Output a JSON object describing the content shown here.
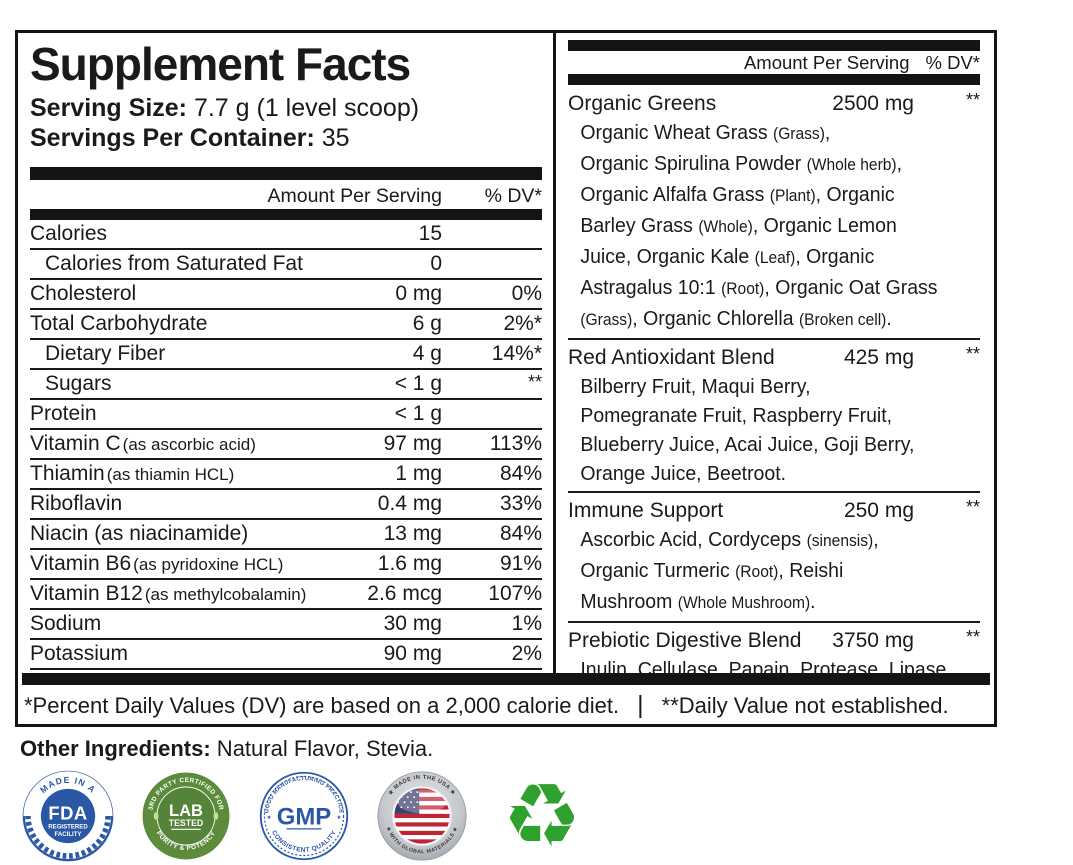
{
  "panel": {
    "title": "Supplement Facts",
    "serving_size_label": "Serving Size:",
    "serving_size_value": " 7.7 g (1 level scoop)",
    "servings_label": "Servings Per Container:",
    "servings_value": " 35",
    "left_header": {
      "amount": "Amount Per Serving",
      "dv": "% DV*"
    },
    "nutrients": [
      {
        "name": "Calories",
        "amount": "15",
        "dv": ""
      },
      {
        "name": "Calories from Saturated Fat",
        "amount": "0",
        "dv": "",
        "indent": true
      },
      {
        "name": "Cholesterol",
        "amount": "0 mg",
        "dv": "0%"
      },
      {
        "name": "Total Carbohydrate",
        "amount": "6 g",
        "dv": "2%*"
      },
      {
        "name": "Dietary Fiber",
        "amount": "4 g",
        "dv": "14%*",
        "indent": true
      },
      {
        "name": "Sugars",
        "amount": "< 1 g",
        "dv": "**",
        "indent": true,
        "stars": true
      },
      {
        "name": "Protein",
        "amount": "< 1 g",
        "dv": ""
      },
      {
        "name": "Vitamin C",
        "note": "(as ascorbic acid)",
        "amount": "97 mg",
        "dv": "113%"
      },
      {
        "name": "Thiamin",
        "note": "(as thiamin HCL)",
        "amount": "1 mg",
        "dv": "84%"
      },
      {
        "name": "Riboflavin",
        "amount": "0.4 mg",
        "dv": "33%"
      },
      {
        "name": "Niacin (as niacinamide)",
        "amount": "13 mg",
        "dv": "84%"
      },
      {
        "name": "Vitamin B6",
        "note": "(as pyridoxine HCL)",
        "amount": "1.6 mg",
        "dv": "91%"
      },
      {
        "name": "Vitamin B12",
        "note": "(as methylcobalamin)",
        "amount": "2.6 mcg",
        "dv": "107%"
      },
      {
        "name": "Sodium",
        "amount": "30 mg",
        "dv": "1%"
      },
      {
        "name": "Potassium",
        "amount": "90 mg",
        "dv": "2%"
      }
    ],
    "right_header": {
      "amount": "Amount Per Serving",
      "dv": "% DV*"
    },
    "blends": [
      {
        "name": "Organic Greens",
        "amount": "2500 mg",
        "dv": "**",
        "lines": [
          "Organic Wheat Grass (Grass),",
          "Organic Spirulina Powder (Whole herb),",
          "Organic Alfalfa Grass (Plant), Organic",
          "Barley Grass (Whole), Organic Lemon",
          "Juice, Organic Kale (Leaf), Organic",
          "Astragalus 10:1 (Root), Organic Oat Grass",
          "(Grass), Organic Chlorella (Broken cell)."
        ]
      },
      {
        "name": "Red Antioxidant Blend",
        "amount": "425 mg",
        "dv": "**",
        "lines": [
          "Bilberry Fruit, Maqui Berry,",
          "Pomegranate Fruit, Raspberry Fruit,",
          "Blueberry Juice, Acai Juice, Goji Berry,",
          "Orange Juice, Beetroot."
        ]
      },
      {
        "name": "Immune Support",
        "amount": "250 mg",
        "dv": "**",
        "lines": [
          "Ascorbic Acid, Cordyceps (sinensis),",
          "Organic Turmeric (Root), Reishi",
          "Mushroom (Whole Mushroom)."
        ]
      },
      {
        "name": "Prebiotic Digestive Blend",
        "amount": "3750 mg",
        "dv": "**",
        "lines": [
          "Inulin, Cellulase, Papain, Protease, Lipase."
        ]
      }
    ],
    "footnote": {
      "part1": "*Percent Daily Values (DV) are based on a 2,000 calorie diet.",
      "separator": "|",
      "part2": "**Daily Value not established."
    }
  },
  "other_ingredients": {
    "label": "Other Ingredients:",
    "value": " Natural Flavor, Stevia."
  },
  "badges": {
    "fda": {
      "arc_top": "MADE IN A",
      "line1": "FDA",
      "line2": "REGISTERED",
      "line3": "FACILITY",
      "color": "#2b58a6"
    },
    "lab": {
      "arc_top": "3RD PARTY CERTIFIED FOR",
      "line1": "LAB",
      "line2": "TESTED",
      "arc_bottom": "PURITY & POTENCY",
      "color": "#5c8b3c"
    },
    "gmp": {
      "arc_top": "GOOD MANUFACTURING PRACTICE",
      "line1": "GMP",
      "arc_bottom": "CONSISTENT QUALITY",
      "color": "#2b58a6"
    },
    "usa": {
      "arc_top": "★ MADE IN THE USA ★",
      "arc_bottom": "★ WITH GLOBAL MATERIALS ★",
      "flag_red": "#bf2536",
      "flag_blue": "#3c3f6e",
      "ring": "#c3c6ca"
    },
    "recycle": {
      "glyph": "♻",
      "color": "#2ea12e"
    }
  },
  "colors": {
    "text": "#1a1a1a",
    "border": "#141414",
    "background": "#ffffff"
  }
}
